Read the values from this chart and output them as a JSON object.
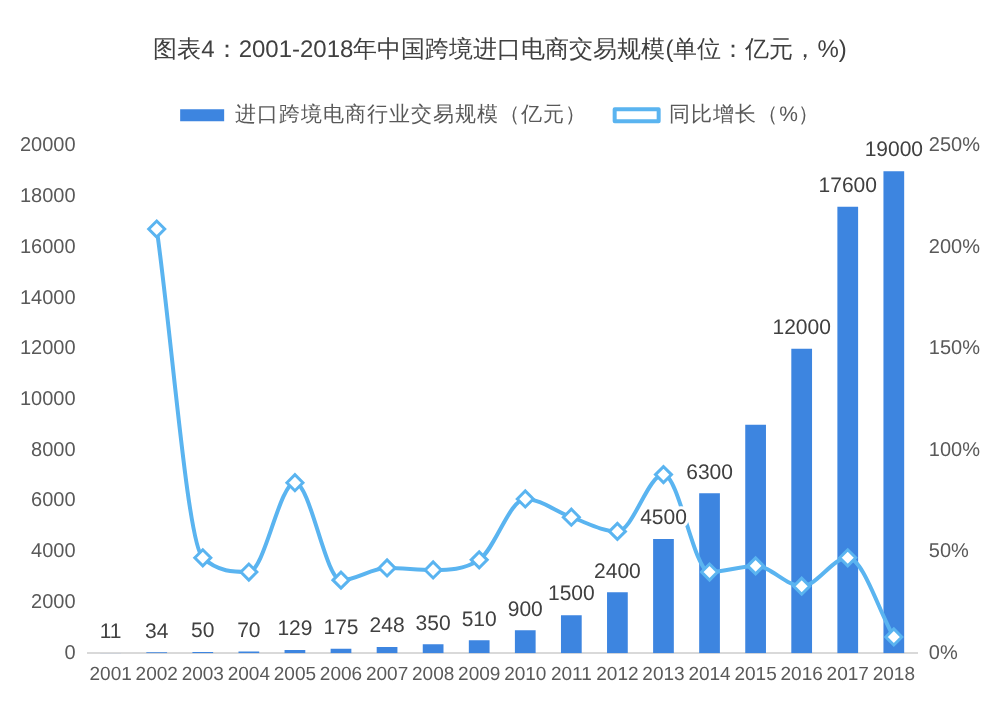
{
  "chart_data": {
    "type": "bar",
    "title": "图表4：2001-2018年中国跨境进口电商交易规模(单位：亿元，%)",
    "categories": [
      "2001",
      "2002",
      "2003",
      "2004",
      "2005",
      "2006",
      "2007",
      "2008",
      "2009",
      "2010",
      "2011",
      "2012",
      "2013",
      "2014",
      "2015",
      "2016",
      "2017",
      "2018"
    ],
    "series": [
      {
        "name": "进口跨境电商行业交易规模（亿元）",
        "color": "#3d85e0",
        "values": [
          11,
          34,
          50,
          70,
          129,
          175,
          248,
          350,
          510,
          900,
          1500,
          2400,
          4500,
          6300,
          9000,
          12000,
          17600,
          19000
        ],
        "value_labels": [
          "11",
          "34",
          "50",
          "70",
          "129",
          "175",
          "248",
          "350",
          "510",
          "900",
          "1500",
          "2400",
          "4500",
          "6300",
          null,
          "12000",
          "17600",
          "19000"
        ]
      },
      {
        "name": "同比增长（%）",
        "type": "line",
        "axis": "y2",
        "color": "#5ab4f0",
        "marker": "diamond",
        "values": [
          null,
          209,
          47,
          40,
          84,
          36,
          42,
          41,
          46,
          76,
          67,
          60,
          88,
          40,
          43,
          33,
          47,
          8
        ]
      }
    ],
    "ylim": [
      0,
      20000
    ],
    "yticks": [
      0,
      2000,
      4000,
      6000,
      8000,
      10000,
      12000,
      14000,
      16000,
      18000,
      20000
    ],
    "y2lim": [
      0,
      250
    ],
    "y2ticks": [
      {
        "value": 0,
        "label": "0%"
      },
      {
        "value": 50,
        "label": "50%"
      },
      {
        "value": 100,
        "label": "100%"
      },
      {
        "value": 150,
        "label": "150%"
      },
      {
        "value": 200,
        "label": "200%"
      },
      {
        "value": 250,
        "label": "250%"
      }
    ],
    "legend": "top",
    "grid": false
  }
}
